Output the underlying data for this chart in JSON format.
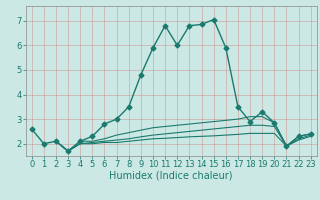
{
  "title": "",
  "xlabel": "Humidex (Indice chaleur)",
  "bg_color": "#cce8e4",
  "grid_color": "#bbcccc",
  "line_color": "#1a7a6e",
  "xlim": [
    -0.5,
    23.5
  ],
  "ylim": [
    1.5,
    7.6
  ],
  "yticks": [
    2,
    3,
    4,
    5,
    6,
    7
  ],
  "xticks": [
    0,
    1,
    2,
    3,
    4,
    5,
    6,
    7,
    8,
    9,
    10,
    11,
    12,
    13,
    14,
    15,
    16,
    17,
    18,
    19,
    20,
    21,
    22,
    23
  ],
  "series": [
    {
      "x": [
        0,
        1,
        2,
        3,
        4,
        5,
        6,
        7,
        8,
        9,
        10,
        11,
        12,
        13,
        14,
        15,
        16,
        17,
        18,
        19,
        20,
        21,
        22,
        23
      ],
      "y": [
        2.6,
        2.0,
        2.1,
        1.7,
        2.1,
        2.3,
        2.8,
        3.0,
        3.5,
        4.8,
        5.9,
        6.8,
        6.0,
        6.8,
        6.85,
        7.05,
        5.9,
        3.5,
        2.9,
        3.3,
        2.85,
        1.9,
        2.3,
        2.4
      ],
      "style": "-",
      "marker": "D",
      "markersize": 2.5,
      "linewidth": 1.0
    },
    {
      "x": [
        2,
        3,
        4,
        5,
        6,
        7,
        8,
        9,
        10,
        11,
        12,
        13,
        14,
        15,
        16,
        17,
        18,
        19,
        20,
        21,
        22,
        23
      ],
      "y": [
        2.1,
        1.7,
        2.1,
        2.1,
        2.2,
        2.35,
        2.45,
        2.55,
        2.65,
        2.7,
        2.75,
        2.8,
        2.85,
        2.9,
        2.95,
        3.0,
        3.1,
        3.1,
        2.85,
        1.9,
        2.3,
        2.4
      ],
      "style": "-",
      "marker": null,
      "markersize": 0,
      "linewidth": 0.8
    },
    {
      "x": [
        2,
        3,
        4,
        5,
        6,
        7,
        8,
        9,
        10,
        11,
        12,
        13,
        14,
        15,
        16,
        17,
        18,
        19,
        20,
        21,
        22,
        23
      ],
      "y": [
        2.1,
        1.7,
        2.0,
        2.05,
        2.1,
        2.15,
        2.2,
        2.28,
        2.35,
        2.4,
        2.45,
        2.5,
        2.55,
        2.6,
        2.65,
        2.7,
        2.75,
        2.75,
        2.7,
        1.9,
        2.2,
        2.35
      ],
      "style": "-",
      "marker": null,
      "markersize": 0,
      "linewidth": 0.8
    },
    {
      "x": [
        2,
        3,
        4,
        5,
        6,
        7,
        8,
        9,
        10,
        11,
        12,
        13,
        14,
        15,
        16,
        17,
        18,
        19,
        20,
        21,
        22,
        23
      ],
      "y": [
        2.1,
        1.7,
        2.0,
        2.0,
        2.05,
        2.05,
        2.1,
        2.15,
        2.2,
        2.22,
        2.25,
        2.28,
        2.3,
        2.32,
        2.35,
        2.38,
        2.42,
        2.42,
        2.42,
        1.9,
        2.15,
        2.3
      ],
      "style": "-",
      "marker": null,
      "markersize": 0,
      "linewidth": 0.8
    }
  ],
  "tick_fontsize": 6,
  "xlabel_fontsize": 7,
  "tick_color": "#1a7a6e",
  "spine_color": "#888888"
}
